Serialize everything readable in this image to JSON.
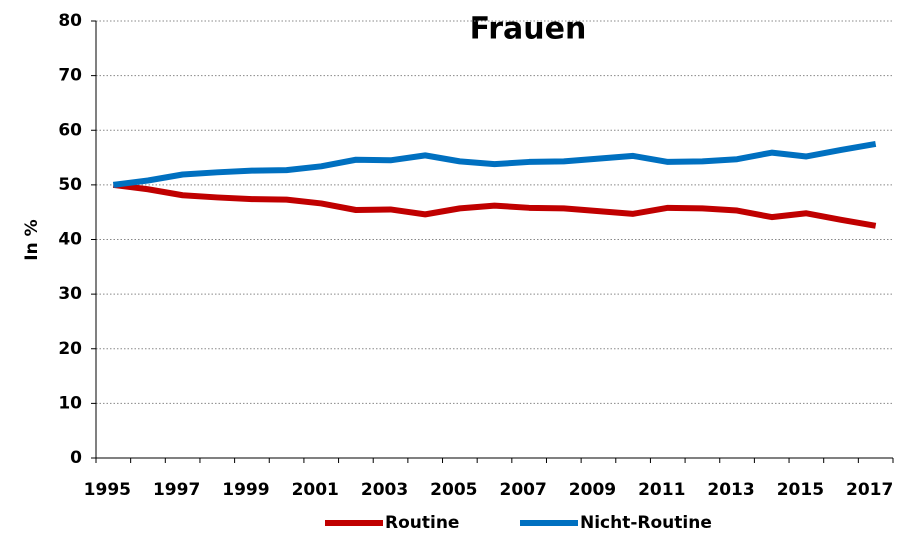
{
  "chart_data": {
    "type": "line",
    "title": "Frauen",
    "y_label": "In %",
    "categories": [
      "1995",
      null,
      "1997",
      null,
      "1999",
      null,
      "2001",
      null,
      "2003",
      null,
      "2005",
      null,
      "2007",
      null,
      "2009",
      null,
      "2011",
      null,
      "2013",
      null,
      "2015",
      null,
      "2017"
    ],
    "series": [
      {
        "name": "Routine",
        "color": "#c00000",
        "values": [
          50,
          49.2,
          48.1,
          47.7,
          47.4,
          47.3,
          46.6,
          45.4,
          45.5,
          44.6,
          45.7,
          46.2,
          45.8,
          45.7,
          45.2,
          44.7,
          45.8,
          45.7,
          45.3,
          44.1,
          44.8,
          43.6,
          42.5
        ]
      },
      {
        "name": "Nicht-Routine",
        "color": "#0070c0",
        "values": [
          50,
          50.8,
          51.9,
          52.3,
          52.6,
          52.7,
          53.4,
          54.6,
          54.5,
          55.4,
          54.3,
          53.8,
          54.2,
          54.3,
          54.8,
          55.3,
          54.2,
          54.3,
          54.7,
          55.9,
          55.2,
          56.4,
          57.5
        ]
      }
    ],
    "ylim": [
      0,
      80
    ],
    "yticks": [
      0,
      10,
      20,
      30,
      40,
      50,
      60,
      70,
      80
    ],
    "grid": true,
    "legend": "bottom"
  }
}
